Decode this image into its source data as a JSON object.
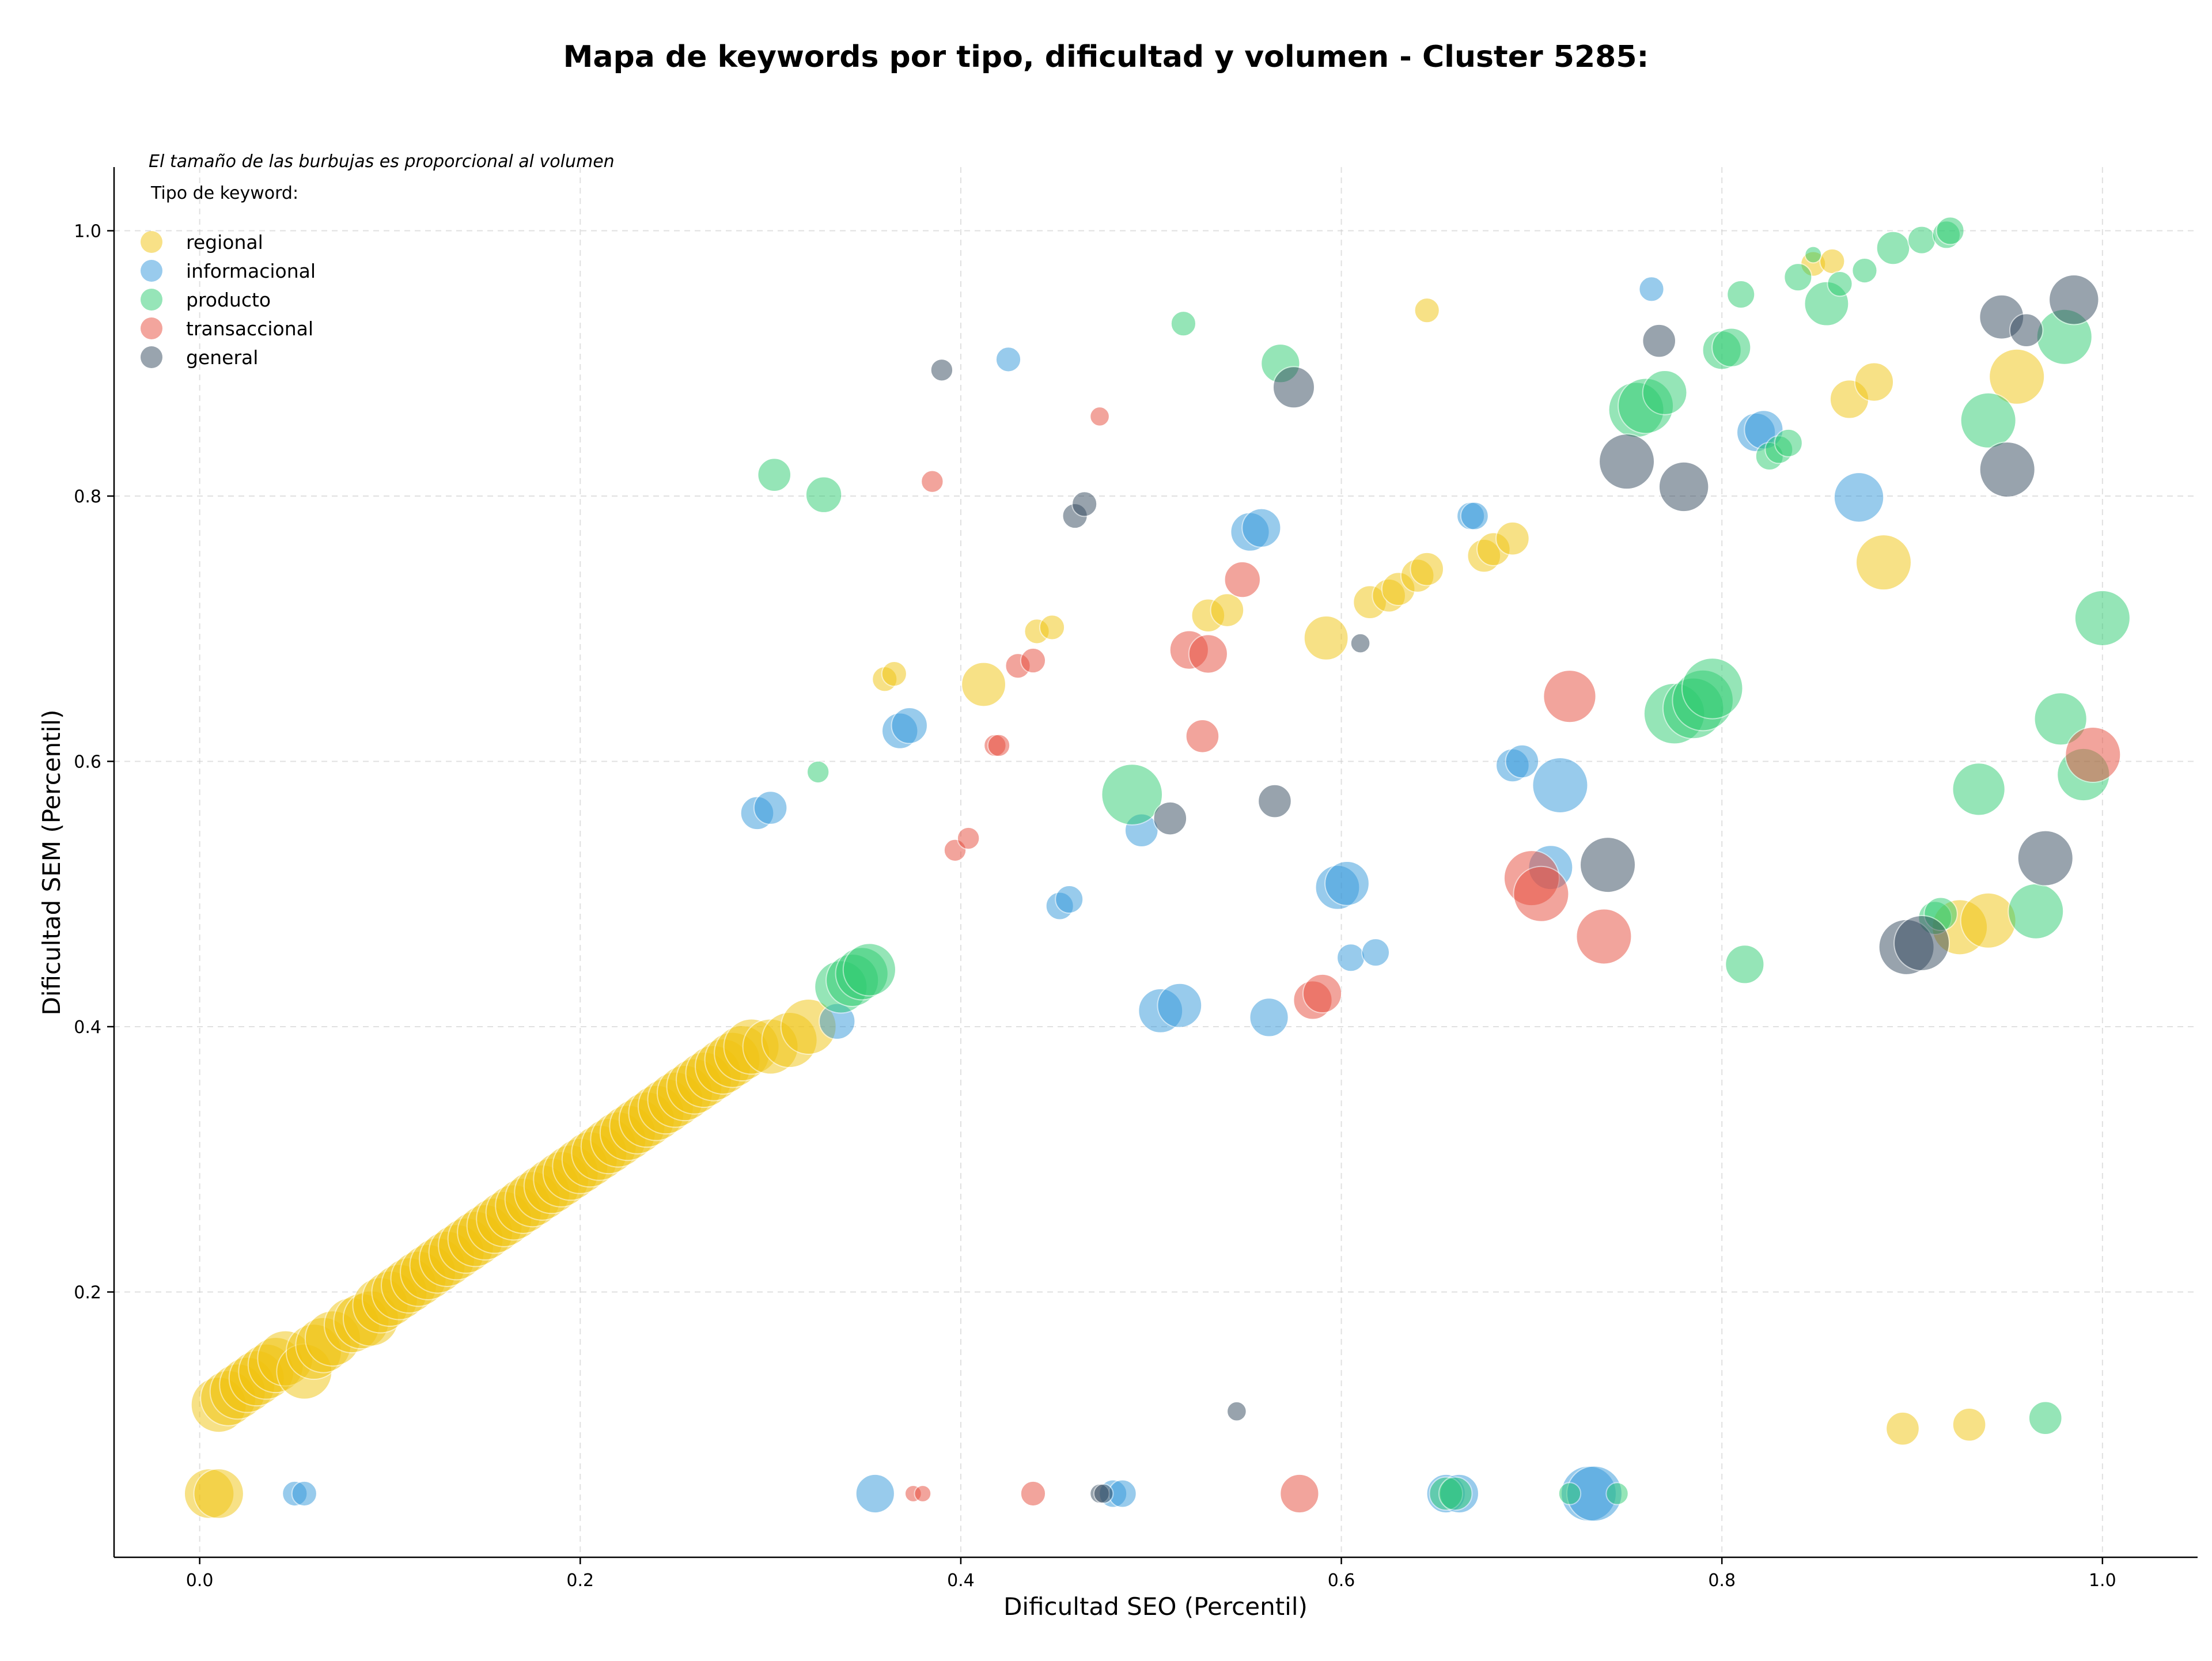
{
  "chart_data": {
    "type": "scatter",
    "title": "Mapa de keywords por tipo, dificultad y volumen - Cluster 5285:",
    "xlabel": "Dificultad SEO (Percentil)",
    "ylabel": "Dificultad SEM (Percentil)",
    "note": "El tamaño de las burbujas es proporcional al volumen",
    "xlim": [
      -0.045,
      1.05
    ],
    "ylim": [
      0.0,
      1.048
    ],
    "x_ticks": [
      "0.0",
      "0.2",
      "0.4",
      "0.6",
      "0.8",
      "1.0"
    ],
    "y_ticks": [
      "0.2",
      "0.4",
      "0.6",
      "0.8",
      "1.0"
    ],
    "x_tick_values": [
      0.0,
      0.2,
      0.4,
      0.6,
      0.8,
      1.0
    ],
    "y_tick_values": [
      0.2,
      0.4,
      0.6,
      0.8,
      1.0
    ],
    "grid": true,
    "legend": {
      "title": "Tipo de keyword:",
      "placement": "top-left"
    },
    "size_encoding": "volume (relative)",
    "series": [
      {
        "name": "regional",
        "color": "#f1c40f",
        "points": [
          [
            0.01,
            0.115,
            1.0
          ],
          [
            0.015,
            0.12,
            1.0
          ],
          [
            0.02,
            0.125,
            1.0
          ],
          [
            0.025,
            0.13,
            1.0
          ],
          [
            0.03,
            0.135,
            1.0
          ],
          [
            0.035,
            0.14,
            1.0
          ],
          [
            0.04,
            0.145,
            1.0
          ],
          [
            0.045,
            0.15,
            1.0
          ],
          [
            0.055,
            0.14,
            1.0
          ],
          [
            0.06,
            0.155,
            1.0
          ],
          [
            0.065,
            0.16,
            1.0
          ],
          [
            0.07,
            0.165,
            1.0
          ],
          [
            0.08,
            0.175,
            1.0
          ],
          [
            0.085,
            0.178,
            1.0
          ],
          [
            0.09,
            0.18,
            1.0
          ],
          [
            0.095,
            0.19,
            1.0
          ],
          [
            0.1,
            0.195,
            1.0
          ],
          [
            0.105,
            0.2,
            1.0
          ],
          [
            0.11,
            0.205,
            1.0
          ],
          [
            0.115,
            0.21,
            1.0
          ],
          [
            0.12,
            0.215,
            1.0
          ],
          [
            0.125,
            0.22,
            1.0
          ],
          [
            0.13,
            0.225,
            1.0
          ],
          [
            0.135,
            0.23,
            1.0
          ],
          [
            0.14,
            0.235,
            1.0
          ],
          [
            0.145,
            0.24,
            1.0
          ],
          [
            0.15,
            0.245,
            1.0
          ],
          [
            0.155,
            0.25,
            1.0
          ],
          [
            0.16,
            0.255,
            1.0
          ],
          [
            0.165,
            0.26,
            1.0
          ],
          [
            0.17,
            0.265,
            1.0
          ],
          [
            0.175,
            0.27,
            1.0
          ],
          [
            0.18,
            0.275,
            1.0
          ],
          [
            0.185,
            0.28,
            1.0
          ],
          [
            0.19,
            0.285,
            1.0
          ],
          [
            0.195,
            0.29,
            1.0
          ],
          [
            0.2,
            0.295,
            1.0
          ],
          [
            0.205,
            0.3,
            1.0
          ],
          [
            0.21,
            0.305,
            1.0
          ],
          [
            0.215,
            0.31,
            1.0
          ],
          [
            0.22,
            0.315,
            1.0
          ],
          [
            0.225,
            0.32,
            1.0
          ],
          [
            0.23,
            0.325,
            1.0
          ],
          [
            0.235,
            0.33,
            1.0
          ],
          [
            0.24,
            0.335,
            1.0
          ],
          [
            0.245,
            0.34,
            1.0
          ],
          [
            0.25,
            0.345,
            1.0
          ],
          [
            0.255,
            0.35,
            1.0
          ],
          [
            0.26,
            0.355,
            1.0
          ],
          [
            0.265,
            0.36,
            1.0
          ],
          [
            0.27,
            0.365,
            1.0
          ],
          [
            0.275,
            0.37,
            1.0
          ],
          [
            0.28,
            0.375,
            1.0
          ],
          [
            0.285,
            0.38,
            1.0
          ],
          [
            0.29,
            0.385,
            1.0
          ],
          [
            0.3,
            0.385,
            1.0
          ],
          [
            0.31,
            0.39,
            1.0
          ],
          [
            0.32,
            0.4,
            1.0
          ],
          [
            0.005,
            0.048,
            0.9
          ],
          [
            0.01,
            0.048,
            0.9
          ],
          [
            0.36,
            0.662,
            0.45
          ],
          [
            0.365,
            0.666,
            0.45
          ],
          [
            0.412,
            0.658,
            0.8
          ],
          [
            0.44,
            0.698,
            0.45
          ],
          [
            0.448,
            0.701,
            0.45
          ],
          [
            0.53,
            0.71,
            0.6
          ],
          [
            0.54,
            0.714,
            0.6
          ],
          [
            0.592,
            0.693,
            0.8
          ],
          [
            0.615,
            0.72,
            0.6
          ],
          [
            0.625,
            0.725,
            0.6
          ],
          [
            0.63,
            0.73,
            0.6
          ],
          [
            0.64,
            0.74,
            0.6
          ],
          [
            0.645,
            0.745,
            0.6
          ],
          [
            0.675,
            0.755,
            0.6
          ],
          [
            0.68,
            0.76,
            0.6
          ],
          [
            0.69,
            0.768,
            0.6
          ],
          [
            0.645,
            0.94,
            0.45
          ],
          [
            0.848,
            0.975,
            0.45
          ],
          [
            0.858,
            0.977,
            0.45
          ],
          [
            0.867,
            0.873,
            0.7
          ],
          [
            0.88,
            0.886,
            0.7
          ],
          [
            0.885,
            0.75,
            1.0
          ],
          [
            0.955,
            0.89,
            1.0
          ],
          [
            0.925,
            0.475,
            1.0
          ],
          [
            0.94,
            0.48,
            1.0
          ],
          [
            0.895,
            0.097,
            0.6
          ],
          [
            0.93,
            0.1,
            0.6
          ]
        ]
      },
      {
        "name": "informacional",
        "color": "#3498db",
        "points": [
          [
            0.05,
            0.048,
            0.45
          ],
          [
            0.055,
            0.048,
            0.45
          ],
          [
            0.293,
            0.561,
            0.6
          ],
          [
            0.3,
            0.565,
            0.6
          ],
          [
            0.368,
            0.623,
            0.65
          ],
          [
            0.373,
            0.627,
            0.65
          ],
          [
            0.335,
            0.404,
            0.65
          ],
          [
            0.355,
            0.048,
            0.7
          ],
          [
            0.425,
            0.903,
            0.45
          ],
          [
            0.452,
            0.491,
            0.5
          ],
          [
            0.457,
            0.496,
            0.5
          ],
          [
            0.48,
            0.048,
            0.5
          ],
          [
            0.485,
            0.048,
            0.5
          ],
          [
            0.495,
            0.548,
            0.6
          ],
          [
            0.505,
            0.412,
            0.8
          ],
          [
            0.515,
            0.416,
            0.8
          ],
          [
            0.552,
            0.773,
            0.7
          ],
          [
            0.558,
            0.776,
            0.7
          ],
          [
            0.562,
            0.407,
            0.7
          ],
          [
            0.598,
            0.505,
            0.8
          ],
          [
            0.603,
            0.508,
            0.8
          ],
          [
            0.605,
            0.452,
            0.5
          ],
          [
            0.618,
            0.456,
            0.5
          ],
          [
            0.655,
            0.048,
            0.7
          ],
          [
            0.662,
            0.048,
            0.7
          ],
          [
            0.668,
            0.785,
            0.5
          ],
          [
            0.67,
            0.785,
            0.5
          ],
          [
            0.69,
            0.597,
            0.6
          ],
          [
            0.695,
            0.6,
            0.6
          ],
          [
            0.71,
            0.52,
            0.8
          ],
          [
            0.715,
            0.582,
            1.0
          ],
          [
            0.73,
            0.048,
            1.0
          ],
          [
            0.733,
            0.048,
            1.0
          ],
          [
            0.763,
            0.956,
            0.45
          ],
          [
            0.818,
            0.848,
            0.7
          ],
          [
            0.822,
            0.85,
            0.7
          ],
          [
            0.872,
            0.799,
            0.9
          ]
        ]
      },
      {
        "name": "producto",
        "color": "#2ecc71",
        "points": [
          [
            0.302,
            0.816,
            0.6
          ],
          [
            0.328,
            0.801,
            0.65
          ],
          [
            0.325,
            0.592,
            0.4
          ],
          [
            0.337,
            0.43,
            0.95
          ],
          [
            0.343,
            0.435,
            0.95
          ],
          [
            0.348,
            0.44,
            0.95
          ],
          [
            0.352,
            0.443,
            0.95
          ],
          [
            0.49,
            0.575,
            1.1
          ],
          [
            0.517,
            0.93,
            0.45
          ],
          [
            0.568,
            0.9,
            0.7
          ],
          [
            0.655,
            0.048,
            0.6
          ],
          [
            0.66,
            0.048,
            0.6
          ],
          [
            0.72,
            0.048,
            0.4
          ],
          [
            0.745,
            0.048,
            0.4
          ],
          [
            0.755,
            0.865,
            1.0
          ],
          [
            0.76,
            0.868,
            1.0
          ],
          [
            0.77,
            0.878,
            0.8
          ],
          [
            0.775,
            0.636,
            1.1
          ],
          [
            0.785,
            0.64,
            1.1
          ],
          [
            0.79,
            0.646,
            1.1
          ],
          [
            0.795,
            0.655,
            1.1
          ],
          [
            0.8,
            0.91,
            0.7
          ],
          [
            0.805,
            0.912,
            0.7
          ],
          [
            0.81,
            0.952,
            0.5
          ],
          [
            0.812,
            0.447,
            0.7
          ],
          [
            0.825,
            0.83,
            0.5
          ],
          [
            0.83,
            0.835,
            0.5
          ],
          [
            0.835,
            0.84,
            0.5
          ],
          [
            0.84,
            0.965,
            0.5
          ],
          [
            0.848,
            0.982,
            0.3
          ],
          [
            0.855,
            0.945,
            0.8
          ],
          [
            0.862,
            0.96,
            0.45
          ],
          [
            0.875,
            0.97,
            0.45
          ],
          [
            0.89,
            0.987,
            0.6
          ],
          [
            0.905,
            0.993,
            0.5
          ],
          [
            0.912,
            0.482,
            0.6
          ],
          [
            0.915,
            0.485,
            0.6
          ],
          [
            0.918,
            0.997,
            0.5
          ],
          [
            0.92,
            1.0,
            0.5
          ],
          [
            0.935,
            0.579,
            0.95
          ],
          [
            0.94,
            0.857,
            1.0
          ],
          [
            0.965,
            0.487,
            1.0
          ],
          [
            0.97,
            0.105,
            0.6
          ],
          [
            0.978,
            0.632,
            0.95
          ],
          [
            0.98,
            0.92,
            1.0
          ],
          [
            0.99,
            0.59,
            0.95
          ],
          [
            1.0,
            0.708,
            1.0
          ]
        ]
      },
      {
        "name": "transaccional",
        "color": "#e74c3c",
        "points": [
          [
            0.375,
            0.048,
            0.3
          ],
          [
            0.38,
            0.048,
            0.3
          ],
          [
            0.385,
            0.811,
            0.4
          ],
          [
            0.397,
            0.533,
            0.4
          ],
          [
            0.404,
            0.542,
            0.4
          ],
          [
            0.418,
            0.612,
            0.4
          ],
          [
            0.42,
            0.612,
            0.4
          ],
          [
            0.43,
            0.672,
            0.45
          ],
          [
            0.438,
            0.676,
            0.45
          ],
          [
            0.438,
            0.048,
            0.45
          ],
          [
            0.473,
            0.86,
            0.35
          ],
          [
            0.52,
            0.684,
            0.7
          ],
          [
            0.53,
            0.681,
            0.7
          ],
          [
            0.527,
            0.619,
            0.6
          ],
          [
            0.548,
            0.737,
            0.65
          ],
          [
            0.578,
            0.048,
            0.7
          ],
          [
            0.585,
            0.42,
            0.7
          ],
          [
            0.59,
            0.425,
            0.7
          ],
          [
            0.7,
            0.512,
            1.0
          ],
          [
            0.705,
            0.5,
            1.0
          ],
          [
            0.72,
            0.649,
            0.95
          ],
          [
            0.738,
            0.468,
            1.0
          ],
          [
            0.995,
            0.605,
            1.0
          ]
        ]
      },
      {
        "name": "general",
        "color": "#34495e",
        "points": [
          [
            0.39,
            0.895,
            0.4
          ],
          [
            0.46,
            0.785,
            0.45
          ],
          [
            0.465,
            0.794,
            0.45
          ],
          [
            0.473,
            0.048,
            0.35
          ],
          [
            0.475,
            0.048,
            0.35
          ],
          [
            0.51,
            0.557,
            0.6
          ],
          [
            0.545,
            0.11,
            0.35
          ],
          [
            0.565,
            0.57,
            0.6
          ],
          [
            0.575,
            0.882,
            0.75
          ],
          [
            0.61,
            0.689,
            0.35
          ],
          [
            0.74,
            0.522,
            1.0
          ],
          [
            0.75,
            0.826,
            1.0
          ],
          [
            0.767,
            0.917,
            0.6
          ],
          [
            0.78,
            0.807,
            0.9
          ],
          [
            0.897,
            0.46,
            1.0
          ],
          [
            0.905,
            0.463,
            1.0
          ],
          [
            0.947,
            0.935,
            0.8
          ],
          [
            0.95,
            0.82,
            1.0
          ],
          [
            0.96,
            0.925,
            0.6
          ],
          [
            0.97,
            0.527,
            1.0
          ],
          [
            0.985,
            0.948,
            0.9
          ]
        ]
      }
    ]
  }
}
